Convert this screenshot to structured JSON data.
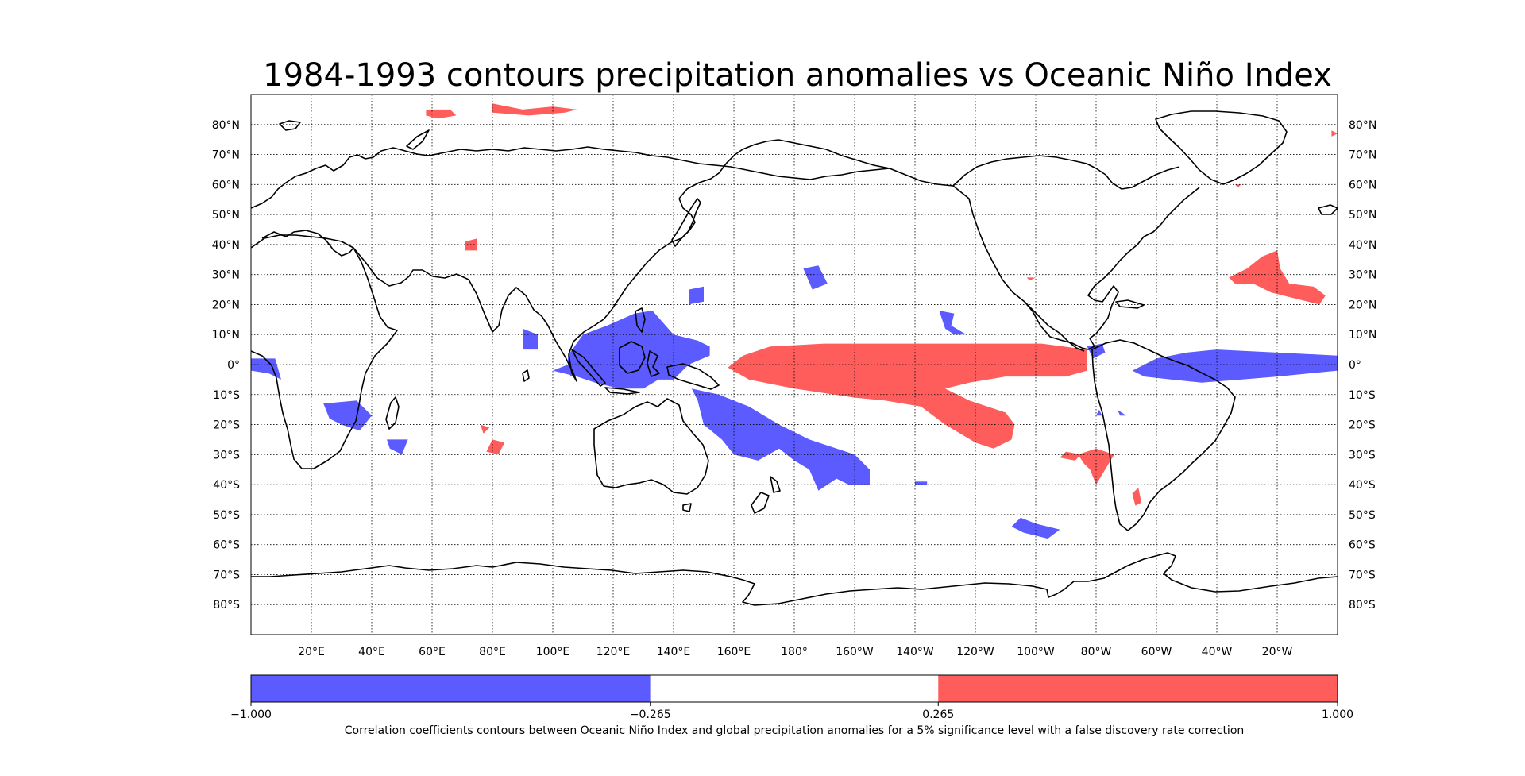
{
  "title": "1984-1993 contours precipitation anomalies vs Oceanic Niño Index",
  "map": {
    "projection": "PlateCarree",
    "central_longitude": 180,
    "lon_range": [
      0,
      360
    ],
    "lat_range": [
      -90,
      90
    ],
    "grid": true,
    "lat_ticks": [
      {
        "value": 80,
        "label": "80°N"
      },
      {
        "value": 70,
        "label": "70°N"
      },
      {
        "value": 60,
        "label": "60°N"
      },
      {
        "value": 50,
        "label": "50°N"
      },
      {
        "value": 40,
        "label": "40°N"
      },
      {
        "value": 30,
        "label": "30°N"
      },
      {
        "value": 20,
        "label": "20°N"
      },
      {
        "value": 10,
        "label": "10°N"
      },
      {
        "value": 0,
        "label": "0°"
      },
      {
        "value": -10,
        "label": "10°S"
      },
      {
        "value": -20,
        "label": "20°S"
      },
      {
        "value": -30,
        "label": "30°S"
      },
      {
        "value": -40,
        "label": "40°S"
      },
      {
        "value": -50,
        "label": "50°S"
      },
      {
        "value": -60,
        "label": "60°S"
      },
      {
        "value": -70,
        "label": "70°S"
      },
      {
        "value": -80,
        "label": "80°S"
      }
    ],
    "lon_ticks": [
      {
        "value": 20,
        "label": "20°E"
      },
      {
        "value": 40,
        "label": "40°E"
      },
      {
        "value": 60,
        "label": "60°E"
      },
      {
        "value": 80,
        "label": "80°E"
      },
      {
        "value": 100,
        "label": "100°E"
      },
      {
        "value": 120,
        "label": "120°E"
      },
      {
        "value": 140,
        "label": "140°E"
      },
      {
        "value": 160,
        "label": "160°E"
      },
      {
        "value": 180,
        "label": "180°"
      },
      {
        "value": 200,
        "label": "160°W"
      },
      {
        "value": 220,
        "label": "140°W"
      },
      {
        "value": 240,
        "label": "120°W"
      },
      {
        "value": 260,
        "label": "100°W"
      },
      {
        "value": 280,
        "label": "80°W"
      },
      {
        "value": 300,
        "label": "60°W"
      },
      {
        "value": 320,
        "label": "40°W"
      },
      {
        "value": 340,
        "label": "20°W"
      }
    ]
  },
  "colors": {
    "negative": "#5b5bff",
    "positive": "#ff5c5c",
    "neutral": "#ffffff",
    "coastline": "#000000"
  },
  "colorbar": {
    "levels": [
      -1.0,
      -0.265,
      0.265,
      1.0
    ],
    "tick_labels": [
      "−1.000",
      "−0.265",
      "0.265",
      "1.000"
    ],
    "caption": "Correlation coefficients contours between Oceanic Niño Index and global precipitation anomalies for a 5% significance level with a false discovery rate correction"
  },
  "regions": {
    "positive": [
      {
        "name": "central-pacific-tongue",
        "pts": [
          [
            158,
            -1
          ],
          [
            163,
            3
          ],
          [
            172,
            6
          ],
          [
            190,
            7
          ],
          [
            220,
            7
          ],
          [
            262,
            7
          ],
          [
            277,
            5
          ],
          [
            277,
            -2
          ],
          [
            270,
            -4
          ],
          [
            250,
            -4
          ],
          [
            238,
            -6
          ],
          [
            230,
            -8
          ],
          [
            238,
            -12
          ],
          [
            250,
            -16
          ],
          [
            253,
            -20
          ],
          [
            252,
            -25
          ],
          [
            246,
            -28
          ],
          [
            240,
            -26
          ],
          [
            230,
            -20
          ],
          [
            222,
            -14
          ],
          [
            210,
            -12
          ],
          [
            200,
            -11
          ],
          [
            180,
            -8
          ],
          [
            165,
            -5
          ]
        ]
      },
      {
        "name": "north-atlantic",
        "pts": [
          [
            324,
            29
          ],
          [
            330,
            32
          ],
          [
            335,
            36
          ],
          [
            340,
            38
          ],
          [
            341,
            32
          ],
          [
            344,
            27
          ],
          [
            352,
            26
          ],
          [
            356,
            23
          ],
          [
            354,
            20
          ],
          [
            346,
            22
          ],
          [
            338,
            24
          ],
          [
            332,
            27
          ],
          [
            326,
            27
          ]
        ]
      },
      {
        "name": "arctic-barents",
        "pts": [
          [
            80,
            87
          ],
          [
            90,
            85
          ],
          [
            100,
            86
          ],
          [
            108,
            85
          ],
          [
            104,
            84
          ],
          [
            92,
            83
          ],
          [
            80,
            84
          ]
        ]
      },
      {
        "name": "arctic-kara",
        "pts": [
          [
            58,
            85
          ],
          [
            66,
            85
          ],
          [
            68,
            83
          ],
          [
            62,
            82
          ],
          [
            58,
            83
          ]
        ]
      },
      {
        "name": "south-america-temperate",
        "pts": [
          [
            274,
            -30
          ],
          [
            280,
            -28
          ],
          [
            286,
            -30
          ],
          [
            283,
            -35
          ],
          [
            280,
            -40
          ],
          [
            278,
            -35
          ],
          [
            276,
            -33
          ]
        ]
      },
      {
        "name": "southeast-pacific-patch",
        "pts": [
          [
            270,
            -29
          ],
          [
            275,
            -30
          ],
          [
            273,
            -32
          ],
          [
            268,
            -31
          ]
        ]
      },
      {
        "name": "argentina-south",
        "pts": [
          [
            292,
            -43
          ],
          [
            294,
            -41
          ],
          [
            295,
            -46
          ],
          [
            293,
            -47
          ]
        ]
      },
      {
        "name": "indian-ocean-20s",
        "pts": [
          [
            80,
            -25
          ],
          [
            84,
            -26
          ],
          [
            82,
            -30
          ],
          [
            78,
            -29
          ]
        ]
      },
      {
        "name": "indian-ocean-22s",
        "pts": [
          [
            76,
            -20
          ],
          [
            79,
            -21
          ],
          [
            77,
            -23
          ]
        ]
      },
      {
        "name": "arabian-sea",
        "pts": [
          [
            71,
            41
          ],
          [
            75,
            42
          ],
          [
            75,
            38
          ],
          [
            71,
            38
          ]
        ]
      },
      {
        "name": "greenland-east",
        "pts": [
          [
            326,
            60
          ],
          [
            328,
            60
          ],
          [
            327,
            59
          ]
        ]
      },
      {
        "name": "northeast-atlantic",
        "pts": [
          [
            358,
            78
          ],
          [
            360,
            77
          ],
          [
            358,
            76
          ]
        ]
      },
      {
        "name": "mexico-west",
        "pts": [
          [
            257,
            29
          ],
          [
            260,
            29
          ],
          [
            258,
            28
          ]
        ]
      }
    ],
    "negative": [
      {
        "name": "maritime-continent",
        "pts": [
          [
            105,
            3
          ],
          [
            110,
            10
          ],
          [
            118,
            13
          ],
          [
            127,
            17
          ],
          [
            133,
            18
          ],
          [
            140,
            10
          ],
          [
            148,
            8
          ],
          [
            152,
            6
          ],
          [
            152,
            3
          ],
          [
            145,
            0
          ],
          [
            140,
            -5
          ],
          [
            135,
            -5
          ],
          [
            130,
            -8
          ],
          [
            122,
            -8
          ],
          [
            114,
            -6
          ],
          [
            108,
            -4
          ],
          [
            100,
            -2
          ],
          [
            105,
            0
          ]
        ]
      },
      {
        "name": "spcz",
        "pts": [
          [
            146,
            -8
          ],
          [
            155,
            -10
          ],
          [
            165,
            -14
          ],
          [
            175,
            -20
          ],
          [
            185,
            -25
          ],
          [
            200,
            -30
          ],
          [
            205,
            -35
          ],
          [
            205,
            -40
          ],
          [
            198,
            -40
          ],
          [
            194,
            -38
          ],
          [
            188,
            -42
          ],
          [
            185,
            -35
          ],
          [
            180,
            -32
          ],
          [
            175,
            -28
          ],
          [
            168,
            -32
          ],
          [
            160,
            -30
          ],
          [
            156,
            -25
          ],
          [
            150,
            -20
          ],
          [
            148,
            -12
          ]
        ]
      },
      {
        "name": "atlantic-equatorial",
        "pts": [
          [
            292,
            -2
          ],
          [
            300,
            2
          ],
          [
            310,
            4
          ],
          [
            320,
            5
          ],
          [
            340,
            4
          ],
          [
            360,
            3
          ],
          [
            360,
            -2
          ],
          [
            340,
            -4
          ],
          [
            328,
            -5
          ],
          [
            315,
            -6
          ],
          [
            305,
            -5
          ],
          [
            296,
            -4
          ]
        ]
      },
      {
        "name": "africa-west-equatorial",
        "pts": [
          [
            0,
            2
          ],
          [
            8,
            2
          ],
          [
            10,
            -5
          ],
          [
            6,
            -3
          ],
          [
            0,
            -2
          ]
        ]
      },
      {
        "name": "southern-africa",
        "pts": [
          [
            24,
            -13
          ],
          [
            35,
            -12
          ],
          [
            40,
            -17
          ],
          [
            36,
            -22
          ],
          [
            30,
            -20
          ],
          [
            26,
            -18
          ]
        ]
      },
      {
        "name": "madagascar-east",
        "pts": [
          [
            45,
            -25
          ],
          [
            52,
            -25
          ],
          [
            50,
            -30
          ],
          [
            46,
            -28
          ]
        ]
      },
      {
        "name": "bay-of-bengal",
        "pts": [
          [
            90,
            12
          ],
          [
            95,
            10
          ],
          [
            95,
            5
          ],
          [
            90,
            5
          ]
        ]
      },
      {
        "name": "north-pacific-west",
        "pts": [
          [
            145,
            25
          ],
          [
            150,
            26
          ],
          [
            150,
            21
          ],
          [
            145,
            20
          ]
        ]
      },
      {
        "name": "north-pacific-central",
        "pts": [
          [
            183,
            32
          ],
          [
            188,
            33
          ],
          [
            191,
            27
          ],
          [
            186,
            25
          ]
        ]
      },
      {
        "name": "east-pacific-15n",
        "pts": [
          [
            228,
            18
          ],
          [
            233,
            17
          ],
          [
            232,
            13
          ],
          [
            237,
            10
          ],
          [
            233,
            10
          ],
          [
            230,
            12
          ]
        ]
      },
      {
        "name": "southeast-pacific-52s",
        "pts": [
          [
            255,
            -51
          ],
          [
            260,
            -53
          ],
          [
            268,
            -55
          ],
          [
            264,
            -58
          ],
          [
            256,
            -56
          ],
          [
            252,
            -54
          ]
        ]
      },
      {
        "name": "gulf-of-panama",
        "pts": [
          [
            277,
            6
          ],
          [
            282,
            7
          ],
          [
            283,
            4
          ],
          [
            279,
            2
          ]
        ]
      },
      {
        "name": "south-pacific-small",
        "pts": [
          [
            287,
            -15
          ],
          [
            290,
            -17
          ],
          [
            288,
            -17
          ]
        ]
      },
      {
        "name": "peru-small",
        "pts": [
          [
            281,
            -15
          ],
          [
            282,
            -17
          ],
          [
            280,
            -17
          ]
        ]
      },
      {
        "name": "south-pacific-39s",
        "pts": [
          [
            220,
            -39
          ],
          [
            224,
            -39
          ],
          [
            224,
            -40
          ],
          [
            220,
            -40
          ]
        ]
      },
      {
        "name": "indonesia-east-small",
        "pts": [
          [
            105,
            -2
          ],
          [
            108,
            -3
          ],
          [
            106,
            -4
          ]
        ]
      }
    ]
  }
}
